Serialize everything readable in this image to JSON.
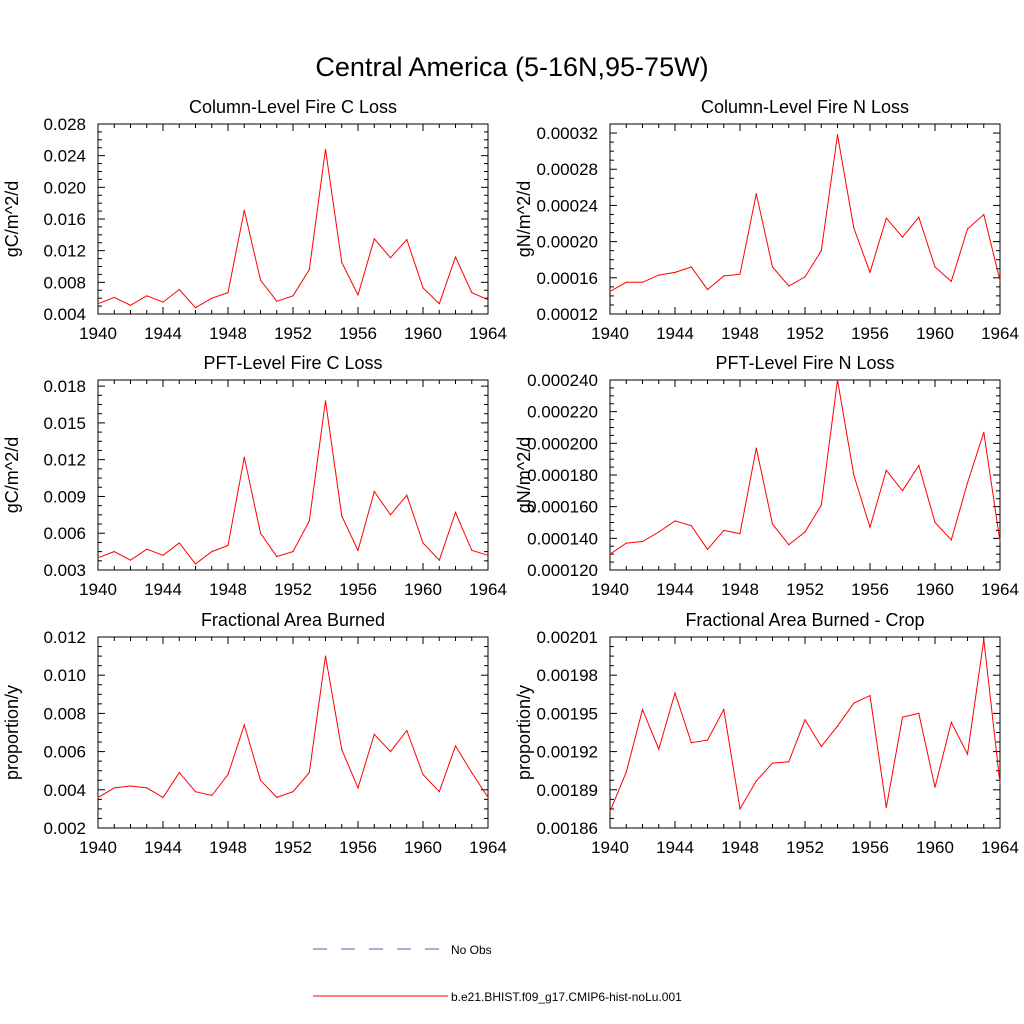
{
  "figure": {
    "title": "Central America (5-16N,95-75W)"
  },
  "legend": {
    "items": [
      {
        "label": "No Obs",
        "color": "#5b5bb5",
        "style": "dashed"
      },
      {
        "label": "b.e21.BHIST.f09_g17.CMIP6-hist-noLu.001",
        "color": "#ff0000",
        "style": "solid"
      }
    ]
  },
  "chart_data": [
    {
      "type": "line",
      "title": "Column-Level Fire C Loss",
      "ylabel": "gC/m^2/d",
      "xlabel": "",
      "xlim": [
        1940,
        1964
      ],
      "ylim": [
        0.004,
        0.028
      ],
      "xticks": [
        "1940",
        "1944",
        "1948",
        "1952",
        "1956",
        "1960",
        "1964"
      ],
      "yticks": [
        "0.004",
        "0.008",
        "0.012",
        "0.016",
        "0.020",
        "0.024",
        "0.028"
      ],
      "series": [
        {
          "name": "b.e21.BHIST.f09_g17.CMIP6-hist-noLu.001",
          "color": "#ff0000",
          "x": [
            1940,
            1941,
            1942,
            1943,
            1944,
            1945,
            1946,
            1947,
            1948,
            1949,
            1950,
            1951,
            1952,
            1953,
            1954,
            1955,
            1956,
            1957,
            1958,
            1959,
            1960,
            1961,
            1962,
            1963,
            1964
          ],
          "y": [
            0.0053,
            0.0061,
            0.0051,
            0.0063,
            0.0055,
            0.0071,
            0.0048,
            0.006,
            0.0067,
            0.0171,
            0.0083,
            0.0056,
            0.0063,
            0.0096,
            0.0248,
            0.0105,
            0.0064,
            0.0135,
            0.0111,
            0.0134,
            0.0073,
            0.0053,
            0.0112,
            0.0067,
            0.0058
          ]
        }
      ]
    },
    {
      "type": "line",
      "title": "Column-Level Fire N Loss",
      "ylabel": "gN/m^2/d",
      "xlabel": "",
      "xlim": [
        1940,
        1964
      ],
      "ylim": [
        0.00012,
        0.00033
      ],
      "xticks": [
        "1940",
        "1944",
        "1948",
        "1952",
        "1956",
        "1960",
        "1964"
      ],
      "yticks": [
        "0.00012",
        "0.00016",
        "0.00020",
        "0.00024",
        "0.00028",
        "0.00032"
      ],
      "series": [
        {
          "name": "b.e21.BHIST.f09_g17.CMIP6-hist-noLu.001",
          "color": "#ff0000",
          "x": [
            1940,
            1941,
            1942,
            1943,
            1944,
            1945,
            1946,
            1947,
            1948,
            1949,
            1950,
            1951,
            1952,
            1953,
            1954,
            1955,
            1956,
            1957,
            1958,
            1959,
            1960,
            1961,
            1962,
            1963,
            1964
          ],
          "y": [
            0.000145,
            0.000155,
            0.000155,
            0.000163,
            0.000166,
            0.000172,
            0.000147,
            0.000162,
            0.000164,
            0.000253,
            0.000172,
            0.000151,
            0.000161,
            0.00019,
            0.000318,
            0.000215,
            0.000166,
            0.000226,
            0.000205,
            0.000227,
            0.000172,
            0.000156,
            0.000214,
            0.00023,
            0.000157
          ]
        }
      ]
    },
    {
      "type": "line",
      "title": "PFT-Level Fire C Loss",
      "ylabel": "gC/m^2/d",
      "xlabel": "",
      "xlim": [
        1940,
        1964
      ],
      "ylim": [
        0.003,
        0.0185
      ],
      "xticks": [
        "1940",
        "1944",
        "1948",
        "1952",
        "1956",
        "1960",
        "1964"
      ],
      "yticks": [
        "0.003",
        "0.006",
        "0.009",
        "0.012",
        "0.015",
        "0.018"
      ],
      "series": [
        {
          "name": "b.e21.BHIST.f09_g17.CMIP6-hist-noLu.001",
          "color": "#ff0000",
          "x": [
            1940,
            1941,
            1942,
            1943,
            1944,
            1945,
            1946,
            1947,
            1948,
            1949,
            1950,
            1951,
            1952,
            1953,
            1954,
            1955,
            1956,
            1957,
            1958,
            1959,
            1960,
            1961,
            1962,
            1963,
            1964
          ],
          "y": [
            0.004,
            0.0045,
            0.0038,
            0.0047,
            0.0042,
            0.0052,
            0.0035,
            0.0045,
            0.005,
            0.0122,
            0.006,
            0.0041,
            0.0045,
            0.007,
            0.0168,
            0.0074,
            0.0046,
            0.0094,
            0.0075,
            0.0091,
            0.0052,
            0.0038,
            0.0077,
            0.0046,
            0.0042
          ]
        }
      ]
    },
    {
      "type": "line",
      "title": "PFT-Level Fire N Loss",
      "ylabel": "gN/m^2/d",
      "xlabel": "",
      "xlim": [
        1940,
        1964
      ],
      "ylim": [
        0.00012,
        0.00024
      ],
      "xticks": [
        "1940",
        "1944",
        "1948",
        "1952",
        "1956",
        "1960",
        "1964"
      ],
      "yticks": [
        "0.000120",
        "0.000140",
        "0.000160",
        "0.000180",
        "0.000200",
        "0.000220",
        "0.000240"
      ],
      "series": [
        {
          "name": "b.e21.BHIST.f09_g17.CMIP6-hist-noLu.001",
          "color": "#ff0000",
          "x": [
            1940,
            1941,
            1942,
            1943,
            1944,
            1945,
            1946,
            1947,
            1948,
            1949,
            1950,
            1951,
            1952,
            1953,
            1954,
            1955,
            1956,
            1957,
            1958,
            1959,
            1960,
            1961,
            1962,
            1963,
            1964
          ],
          "y": [
            0.00013,
            0.000137,
            0.000138,
            0.000144,
            0.000151,
            0.000148,
            0.000133,
            0.000145,
            0.000143,
            0.000197,
            0.000149,
            0.000136,
            0.000144,
            0.000161,
            0.00024,
            0.00018,
            0.000147,
            0.000183,
            0.00017,
            0.000186,
            0.00015,
            0.000139,
            0.000175,
            0.000207,
            0.000138
          ]
        }
      ]
    },
    {
      "type": "line",
      "title": "Fractional Area Burned",
      "ylabel": "proportion/y",
      "xlabel": "",
      "xlim": [
        1940,
        1964
      ],
      "ylim": [
        0.002,
        0.012
      ],
      "xticks": [
        "1940",
        "1944",
        "1948",
        "1952",
        "1956",
        "1960",
        "1964"
      ],
      "yticks": [
        "0.002",
        "0.004",
        "0.006",
        "0.008",
        "0.010",
        "0.012"
      ],
      "series": [
        {
          "name": "b.e21.BHIST.f09_g17.CMIP6-hist-noLu.001",
          "color": "#ff0000",
          "x": [
            1940,
            1941,
            1942,
            1943,
            1944,
            1945,
            1946,
            1947,
            1948,
            1949,
            1950,
            1951,
            1952,
            1953,
            1954,
            1955,
            1956,
            1957,
            1958,
            1959,
            1960,
            1961,
            1962,
            1963,
            1964
          ],
          "y": [
            0.0036,
            0.0041,
            0.0042,
            0.0041,
            0.0036,
            0.0049,
            0.0039,
            0.0037,
            0.0048,
            0.0074,
            0.0045,
            0.0036,
            0.0039,
            0.0049,
            0.011,
            0.0061,
            0.0041,
            0.0069,
            0.006,
            0.0071,
            0.0048,
            0.0039,
            0.0063,
            0.0049,
            0.0036
          ]
        }
      ]
    },
    {
      "type": "line",
      "title": "Fractional Area Burned - Crop",
      "ylabel": "proportion/y",
      "xlabel": "",
      "xlim": [
        1940,
        1964
      ],
      "ylim": [
        0.00186,
        0.00201
      ],
      "xticks": [
        "1940",
        "1944",
        "1948",
        "1952",
        "1956",
        "1960",
        "1964"
      ],
      "yticks": [
        "0.00186",
        "0.00189",
        "0.00192",
        "0.00195",
        "0.00198",
        "0.00201"
      ],
      "series": [
        {
          "name": "b.e21.BHIST.f09_g17.CMIP6-hist-noLu.001",
          "color": "#ff0000",
          "x": [
            1940,
            1941,
            1942,
            1943,
            1944,
            1945,
            1946,
            1947,
            1948,
            1949,
            1950,
            1951,
            1952,
            1953,
            1954,
            1955,
            1956,
            1957,
            1958,
            1959,
            1960,
            1961,
            1962,
            1963,
            1964
          ],
          "y": [
            0.001873,
            0.001904,
            0.001953,
            0.001922,
            0.001966,
            0.001927,
            0.001929,
            0.001953,
            0.001875,
            0.001897,
            0.001911,
            0.001912,
            0.001945,
            0.001924,
            0.00194,
            0.001958,
            0.001964,
            0.001876,
            0.001947,
            0.00195,
            0.001892,
            0.001943,
            0.001918,
            0.002008,
            0.001895
          ]
        }
      ]
    }
  ]
}
